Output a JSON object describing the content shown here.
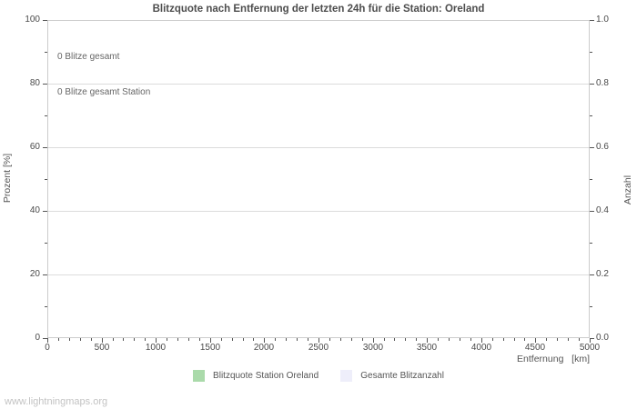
{
  "watermark": "www.lightningmaps.org",
  "chart_data": {
    "type": "bar",
    "title": "Blitzquote nach Entfernung der letzten 24h für die Station: Oreland",
    "xlabel": "Entfernung   [km]",
    "ylabel_left": "Prozent   [%]",
    "ylabel_right": "Anzahl",
    "x_range": [
      0,
      5000
    ],
    "x_major_step": 500,
    "x_minor_step": 100,
    "y_left_range": [
      0,
      100
    ],
    "y_left_major_step": 20,
    "y_left_minor_step": 10,
    "y_right_range": [
      0.0,
      1.0
    ],
    "y_right_major_step": 0.2,
    "y_right_minor_step": 0.1,
    "grid": "horizontal-major-only",
    "legend_position": "bottom-center",
    "annotations": [
      "0 Blitze gesamt",
      "0 Blitze gesamt Station"
    ],
    "series": [
      {
        "name": "Blitzquote Station Oreland",
        "color": "#aadaaa",
        "axis": "left",
        "values": []
      },
      {
        "name": "Gesamte Blitzanzahl",
        "color": "#eeeefa",
        "axis": "right",
        "values": []
      }
    ]
  }
}
